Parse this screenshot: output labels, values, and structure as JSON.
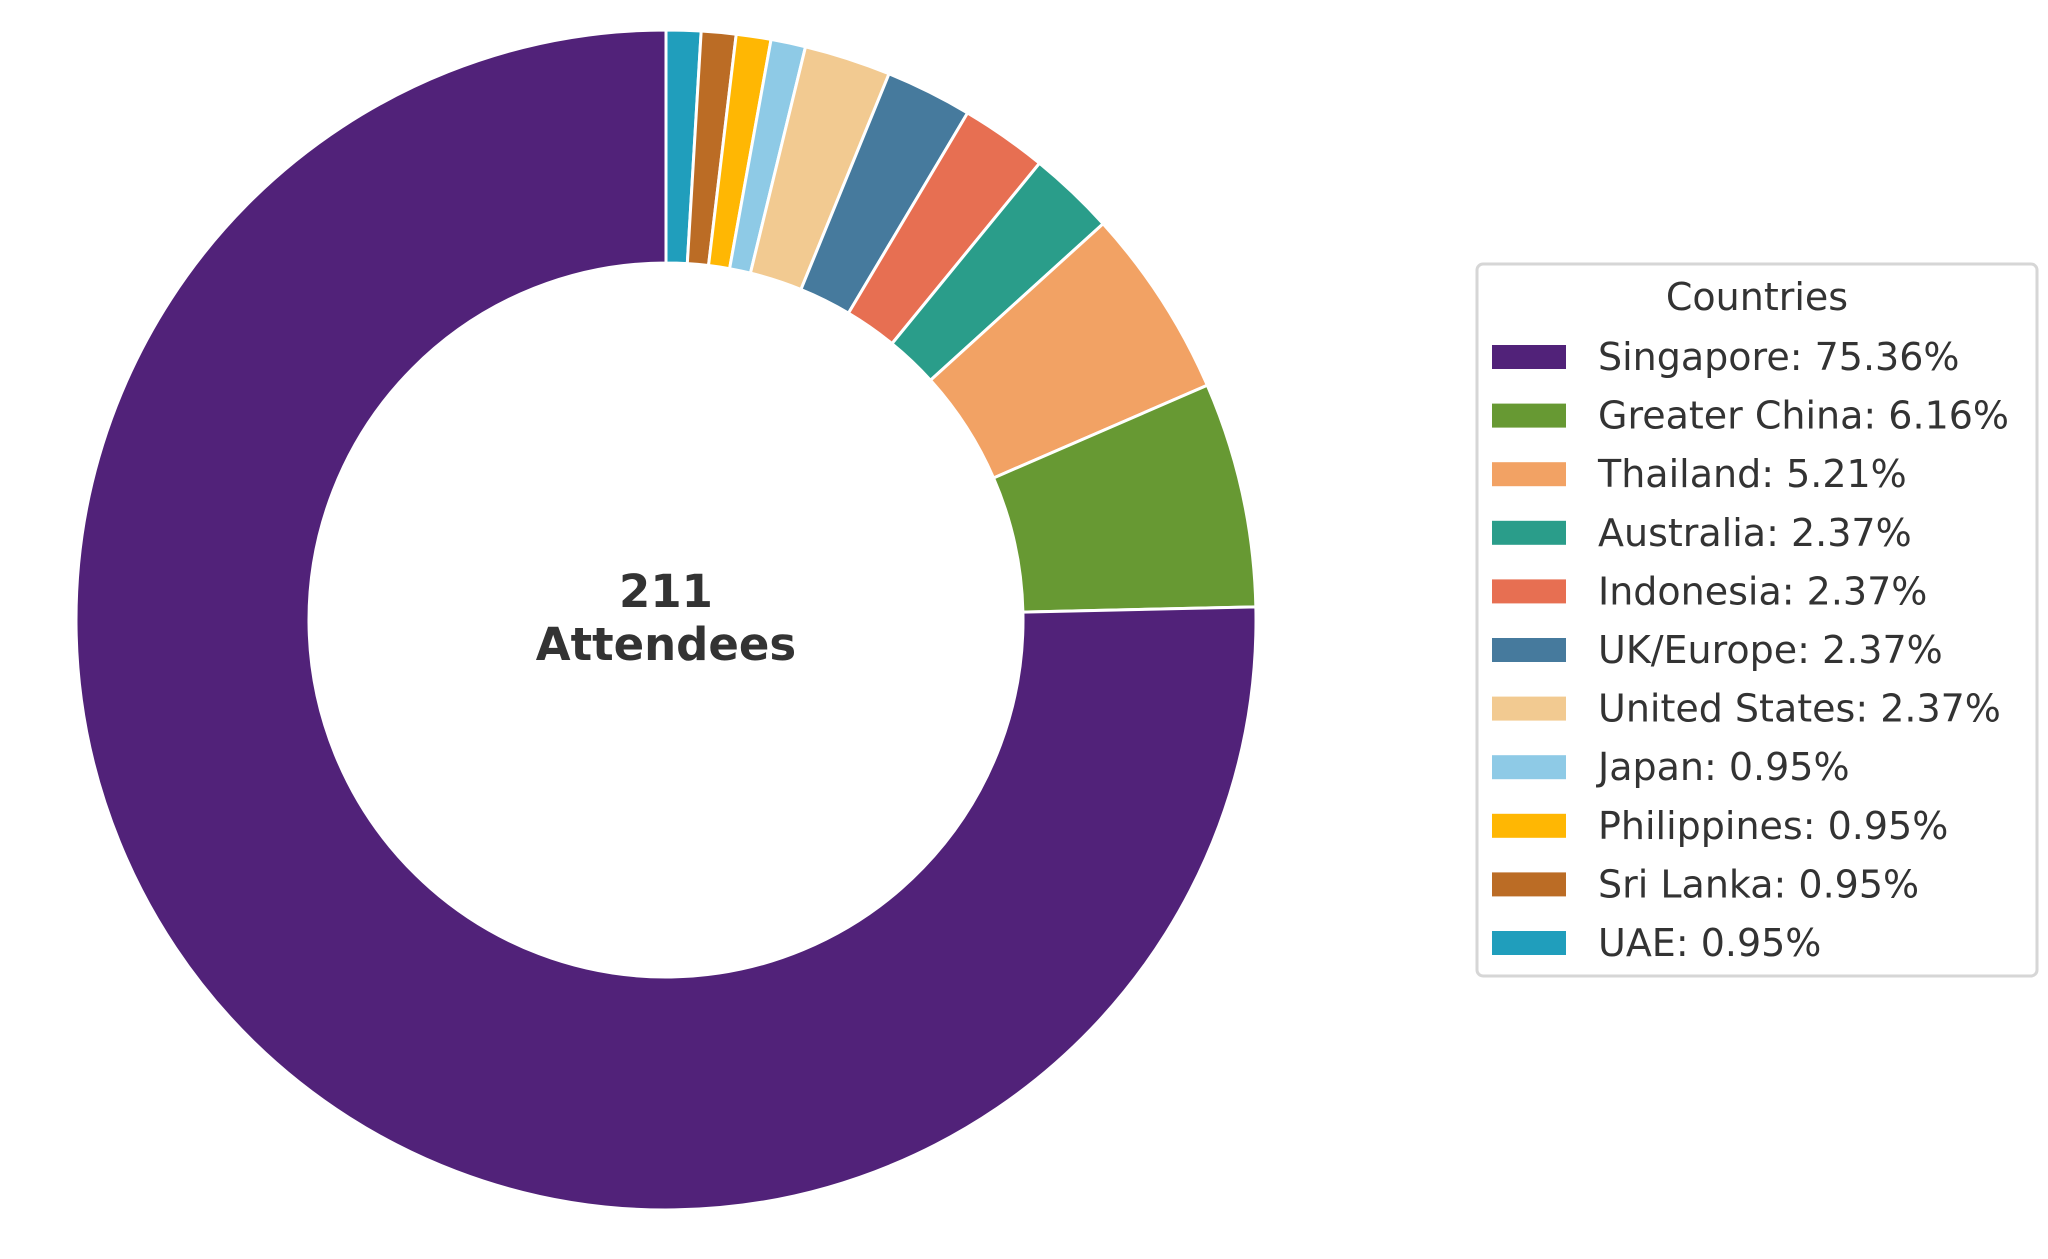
{
  "chart_data": {
    "type": "pie",
    "donut": true,
    "center_label": {
      "line1": "211",
      "line2": "Attendees"
    },
    "legend": {
      "title": "Countries",
      "placement": "right"
    },
    "slices": [
      {
        "label": "Singapore",
        "value": 75.36,
        "legend_text": "Singapore: 75.36%",
        "color": "#512279"
      },
      {
        "label": "Greater China",
        "value": 6.16,
        "legend_text": "Greater China: 6.16%",
        "color": "#679933"
      },
      {
        "label": "Thailand",
        "value": 5.21,
        "legend_text": "Thailand: 5.21%",
        "color": "#F2A264"
      },
      {
        "label": "Australia",
        "value": 2.37,
        "legend_text": "Australia: 2.37%",
        "color": "#2A9D8A"
      },
      {
        "label": "Indonesia",
        "value": 2.37,
        "legend_text": "Indonesia: 2.37%",
        "color": "#E76F52"
      },
      {
        "label": "UK/Europe",
        "value": 2.37,
        "legend_text": "UK/Europe: 2.37%",
        "color": "#467A9D"
      },
      {
        "label": "United States",
        "value": 2.37,
        "legend_text": "United States: 2.37%",
        "color": "#F2CA91"
      },
      {
        "label": "Japan",
        "value": 0.95,
        "legend_text": "Japan: 0.95%",
        "color": "#8ECAE6"
      },
      {
        "label": "Philippines",
        "value": 0.95,
        "legend_text": "Philippines: 0.95%",
        "color": "#FFB703"
      },
      {
        "label": "Sri Lanka",
        "value": 0.95,
        "legend_text": "Sri Lanka: 0.95%",
        "color": "#BB6C25"
      },
      {
        "label": "UAE",
        "value": 0.95,
        "legend_text": "UAE: 0.95%",
        "color": "#209EBC"
      }
    ],
    "start_angle": "top",
    "direction": "clockwise"
  }
}
